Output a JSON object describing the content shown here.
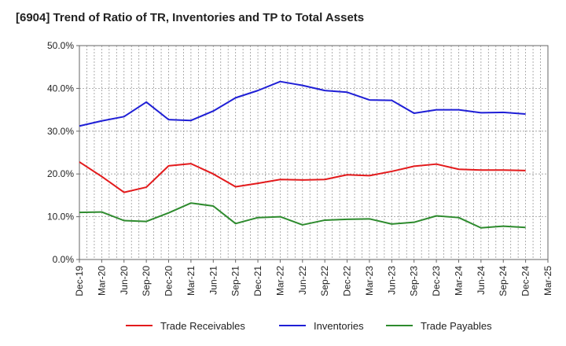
{
  "chart_data": {
    "type": "line",
    "title": "[6904]  Trend of Ratio of TR, Inventories and TP to Total Assets",
    "x_tick_labels": [
      "Dec-19",
      "Mar-20",
      "Jun-20",
      "Sep-20",
      "Dec-20",
      "Mar-21",
      "Jun-21",
      "Sep-21",
      "Dec-21",
      "Mar-22",
      "Jun-22",
      "Sep-22",
      "Dec-22",
      "Mar-23",
      "Jun-23",
      "Sep-23",
      "Dec-23",
      "Mar-24",
      "Jun-24",
      "Sep-24",
      "Dec-24",
      "Mar-25"
    ],
    "x": [
      "Dec-19",
      "Mar-20",
      "Jun-20",
      "Sep-20",
      "Dec-20",
      "Mar-21",
      "Jun-21",
      "Sep-21",
      "Dec-21",
      "Mar-22",
      "Jun-22",
      "Sep-22",
      "Dec-22",
      "Mar-23",
      "Jun-23",
      "Sep-23",
      "Dec-23",
      "Mar-24",
      "Jun-24",
      "Sep-24",
      "Dec-24"
    ],
    "y_tick_labels": [
      "0.0%",
      "10.0%",
      "20.0%",
      "30.0%",
      "40.0%",
      "50.0%"
    ],
    "ylim": [
      0,
      50
    ],
    "grid": true,
    "legend_position": "bottom",
    "series": [
      {
        "name": "Trade Receivables",
        "color": "#e31a1c",
        "values": [
          22.8,
          19.4,
          15.7,
          16.9,
          21.9,
          22.4,
          20.0,
          17.0,
          17.8,
          18.7,
          18.6,
          18.7,
          19.8,
          19.6,
          20.6,
          21.8,
          22.3,
          21.1,
          20.9,
          20.9,
          20.8
        ]
      },
      {
        "name": "Inventories",
        "color": "#1f1fd6",
        "values": [
          31.2,
          32.4,
          33.4,
          36.8,
          32.7,
          32.5,
          34.7,
          37.8,
          39.5,
          41.6,
          40.7,
          39.5,
          39.1,
          37.3,
          37.2,
          34.2,
          35.0,
          35.0,
          34.3,
          34.4,
          34.0
        ]
      },
      {
        "name": "Trade Payables",
        "color": "#2e8b2e",
        "values": [
          11.0,
          11.1,
          9.1,
          8.9,
          10.9,
          13.2,
          12.5,
          8.4,
          9.8,
          10.0,
          8.1,
          9.2,
          9.4,
          9.5,
          8.3,
          8.7,
          10.2,
          9.8,
          7.4,
          7.8,
          7.5
        ]
      }
    ]
  }
}
